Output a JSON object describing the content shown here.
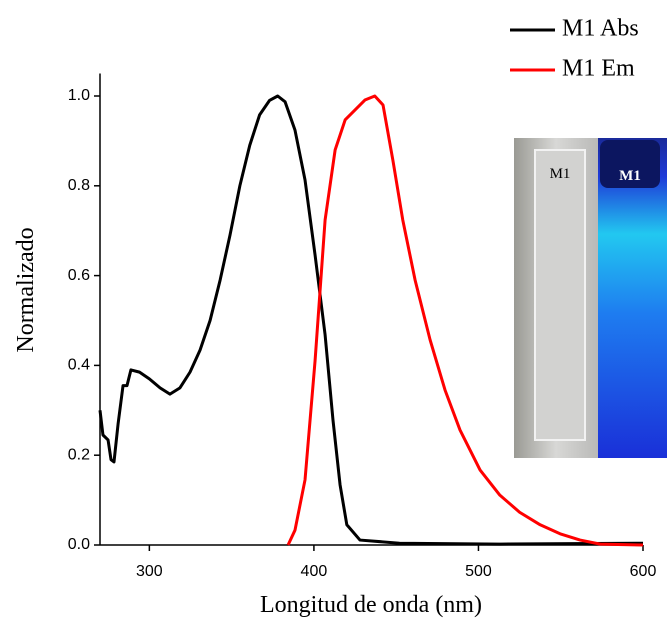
{
  "chart_data": {
    "type": "line",
    "xlabel": "Longitud de onda (nm)",
    "ylabel": "Normalizado",
    "xlim": [
      270,
      600
    ],
    "xticks": [
      300,
      400,
      500,
      600
    ],
    "ylim": [
      0,
      1.05
    ],
    "yticks": [
      {
        "value": 0,
        "label": "0.0"
      },
      0.2,
      0.4,
      0.6,
      0.8,
      {
        "value": 1,
        "label": "1.0"
      }
    ],
    "legend": "upper right",
    "inset_labels": [
      "M1",
      "M1"
    ],
    "series": [
      {
        "name": "M1 Abs",
        "color": "#000000",
        "x": [
          270,
          271.8,
          274.9,
          276.7,
          278.5,
          281,
          284,
          286.4,
          288.8,
          294,
          300,
          306.5,
          312.5,
          318.6,
          324.7,
          330.8,
          336.9,
          343,
          349,
          355,
          361,
          367,
          373,
          378,
          382.5,
          388.5,
          394.6,
          400.7,
          406.8,
          411.6,
          415.9,
          420,
          428,
          452,
          513,
          600
        ],
        "values": [
          0.3,
          0.245,
          0.234,
          0.19,
          0.185,
          0.27,
          0.355,
          0.355,
          0.39,
          0.385,
          0.37,
          0.35,
          0.336,
          0.35,
          0.385,
          0.434,
          0.5,
          0.59,
          0.69,
          0.8,
          0.89,
          0.958,
          0.99,
          1.0,
          0.987,
          0.924,
          0.813,
          0.646,
          0.468,
          0.278,
          0.134,
          0.045,
          0.011,
          0.004,
          0.002,
          0.004
        ]
      },
      {
        "name": "M1 Em",
        "color": "#ff0000",
        "x": [
          384.3,
          388.5,
          394.6,
          400.7,
          406.8,
          412.9,
          419,
          425,
          431,
          437,
          442,
          448,
          454,
          461.5,
          470.6,
          479.7,
          488.8,
          501,
          513,
          525,
          537.5,
          549.6,
          561.8,
          574,
          600
        ],
        "values": [
          0,
          0.033,
          0.145,
          0.41,
          0.724,
          0.88,
          0.947,
          0.969,
          0.991,
          1.0,
          0.98,
          0.857,
          0.724,
          0.59,
          0.457,
          0.345,
          0.256,
          0.167,
          0.111,
          0.073,
          0.045,
          0.025,
          0.011,
          0.002,
          0
        ]
      }
    ]
  }
}
